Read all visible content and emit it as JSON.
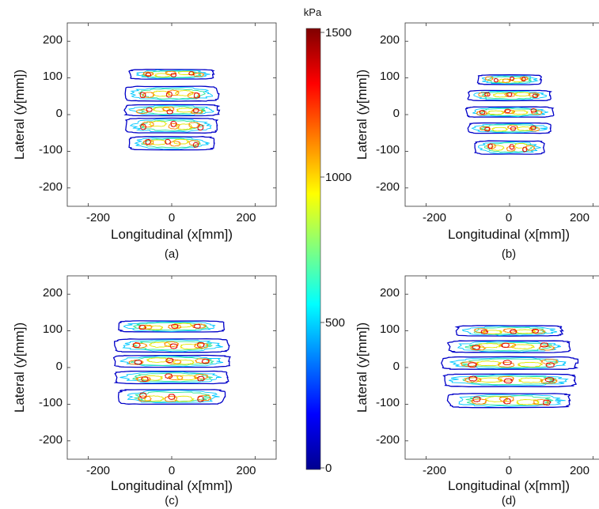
{
  "chart_data": [
    {
      "type": "contour",
      "panel_label": "(a)",
      "xlabel": "Longitudinal (x[mm])",
      "ylabel": "Lateral (y[mm])",
      "xlim": [
        -250,
        250
      ],
      "ylim": [
        -250,
        250
      ],
      "xticks": [
        -200,
        0,
        200
      ],
      "yticks": [
        200,
        100,
        0,
        -100,
        -200
      ],
      "grid": false,
      "footprint": {
        "x_range": [
          -110,
          110
        ],
        "y_range": [
          -100,
          125
        ]
      },
      "ribs": [
        {
          "y_center": 110,
          "half_height": 13,
          "half_width": 100
        },
        {
          "y_center": 57,
          "half_height": 20,
          "half_width": 110
        },
        {
          "y_center": 12,
          "half_height": 15,
          "half_width": 112
        },
        {
          "y_center": -30,
          "half_height": 20,
          "half_width": 108
        },
        {
          "y_center": -78,
          "half_height": 18,
          "half_width": 100
        }
      ]
    },
    {
      "type": "contour",
      "panel_label": "(b)",
      "xlabel": "Longitudinal (x[mm])",
      "ylabel": "Lateral (y[mm])",
      "xlim": [
        -250,
        250
      ],
      "ylim": [
        -250,
        250
      ],
      "xticks": [
        -200,
        0,
        200
      ],
      "yticks": [
        200,
        100,
        0,
        -100,
        -200
      ],
      "grid": false,
      "footprint": {
        "x_range": [
          -105,
          105
        ],
        "y_range": [
          -110,
          110
        ]
      },
      "ribs": [
        {
          "y_center": 95,
          "half_height": 13,
          "half_width": 75
        },
        {
          "y_center": 52,
          "half_height": 14,
          "half_width": 98
        },
        {
          "y_center": 7,
          "half_height": 14,
          "half_width": 103
        },
        {
          "y_center": -37,
          "half_height": 14,
          "half_width": 98
        },
        {
          "y_center": -90,
          "half_height": 18,
          "half_width": 82
        }
      ]
    },
    {
      "type": "contour",
      "panel_label": "(c)",
      "xlabel": "Longitudinal (x[mm])",
      "ylabel": "Lateral (y[mm])",
      "xlim": [
        -250,
        250
      ],
      "ylim": [
        -250,
        250
      ],
      "xticks": [
        -200,
        0,
        200
      ],
      "yticks": [
        200,
        100,
        0,
        -100,
        -200
      ],
      "grid": false,
      "footprint": {
        "x_range": [
          -140,
          140
        ],
        "y_range": [
          -105,
          130
        ]
      },
      "ribs": [
        {
          "y_center": 112,
          "half_height": 15,
          "half_width": 125
        },
        {
          "y_center": 60,
          "half_height": 18,
          "half_width": 135
        },
        {
          "y_center": 17,
          "half_height": 16,
          "half_width": 138
        },
        {
          "y_center": -27,
          "half_height": 17,
          "half_width": 135
        },
        {
          "y_center": -80,
          "half_height": 20,
          "half_width": 125
        }
      ]
    },
    {
      "type": "contour",
      "panel_label": "(d)",
      "xlabel": "Longitudinal (x[mm])",
      "ylabel": "Lateral (y[mm])",
      "xlim": [
        -250,
        250
      ],
      "ylim": [
        -250,
        250
      ],
      "xticks": [
        -200,
        0,
        200
      ],
      "yticks": [
        200,
        100,
        0,
        -100,
        -200
      ],
      "grid": false,
      "footprint": {
        "x_range": [
          -175,
          170
        ],
        "y_range": [
          -115,
          120
        ]
      },
      "ribs": [
        {
          "y_center": 100,
          "half_height": 14,
          "half_width": 125
        },
        {
          "y_center": 57,
          "half_height": 16,
          "half_width": 145
        },
        {
          "y_center": 12,
          "half_height": 17,
          "half_width": 160
        },
        {
          "y_center": -35,
          "half_height": 17,
          "half_width": 158
        },
        {
          "y_center": -90,
          "half_height": 19,
          "half_width": 145
        }
      ]
    }
  ],
  "colorbar": {
    "unit": "kPa",
    "min": 0,
    "max": 1500,
    "tick_labels": [
      "1500",
      "1000",
      "500",
      "0"
    ],
    "tick_values": [
      1500,
      1000,
      500,
      0
    ],
    "colormap": "jet"
  },
  "contour_levels_kpa": [
    150,
    400,
    650,
    900,
    1150,
    1400
  ],
  "colors": [
    "#0000c8",
    "#00c8ff",
    "#2ee89a",
    "#e6e600",
    "#ff8800",
    "#dd0000"
  ]
}
